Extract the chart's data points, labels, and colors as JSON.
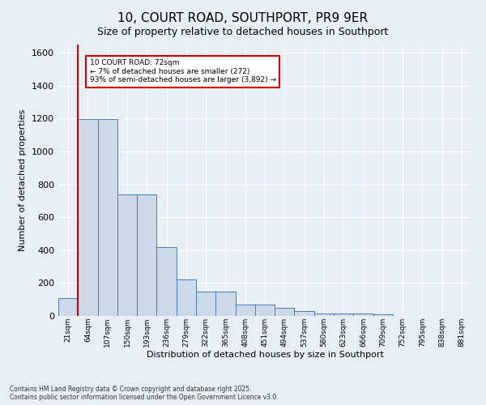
{
  "title": "10, COURT ROAD, SOUTHPORT, PR9 9ER",
  "subtitle": "Size of property relative to detached houses in Southport",
  "xlabel": "Distribution of detached houses by size in Southport",
  "ylabel": "Number of detached properties",
  "bin_labels": [
    "21sqm",
    "64sqm",
    "107sqm",
    "150sqm",
    "193sqm",
    "236sqm",
    "279sqm",
    "322sqm",
    "365sqm",
    "408sqm",
    "451sqm",
    "494sqm",
    "537sqm",
    "580sqm",
    "623sqm",
    "666sqm",
    "709sqm",
    "752sqm",
    "795sqm",
    "838sqm",
    "881sqm"
  ],
  "bar_heights": [
    110,
    1195,
    1195,
    740,
    740,
    420,
    220,
    148,
    148,
    70,
    70,
    50,
    30,
    15,
    15,
    15,
    10,
    0,
    0,
    0,
    0
  ],
  "bar_color": "#ccd9e8",
  "bar_edge_color": "#4a7ab5",
  "highlight_color": "#cc0000",
  "annotation_text": "10 COURT ROAD: 72sqm\n← 7% of detached houses are smaller (272)\n93% of semi-detached houses are larger (3,892) →",
  "annotation_box_color": "#ffffff",
  "annotation_box_edge": "#cc0000",
  "ylim": [
    0,
    1650
  ],
  "yticks": [
    0,
    200,
    400,
    600,
    800,
    1000,
    1200,
    1400,
    1600
  ],
  "footer_line1": "Contains HM Land Registry data © Crown copyright and database right 2025.",
  "footer_line2": "Contains public sector information licensed under the Open Government Licence v3.0.",
  "bg_color": "#e8eef5",
  "plot_bg_color": "#e8eef5",
  "grid_color": "#ffffff",
  "title_fontsize": 11,
  "subtitle_fontsize": 9
}
